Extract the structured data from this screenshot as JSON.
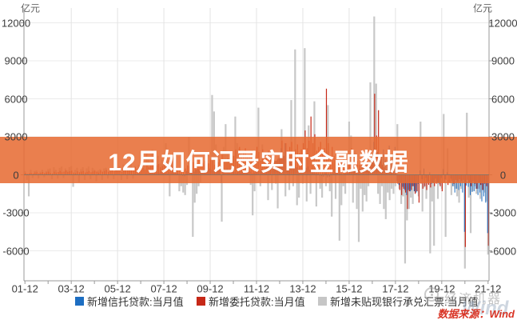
{
  "title_overlay": {
    "text": "12月如何记录实时金融数据",
    "band_color": "rgba(231,108,52,0.87)"
  },
  "axis": {
    "unit_left": "亿元",
    "unit_right": "亿元",
    "y_tick_values": [
      12000,
      9000,
      6000,
      3000,
      0,
      -3000,
      -6000
    ],
    "x_tick_labels": [
      "01-12",
      "03-12",
      "05-12",
      "07-12",
      "09-12",
      "11-12",
      "13-12",
      "15-12",
      "17-12",
      "19-12",
      "21-12"
    ]
  },
  "legend": {
    "items": [
      {
        "label": "新增信托贷款:当月值",
        "color": "#1d6ec2"
      },
      {
        "label": "新增委托贷款:当月值",
        "color": "#c62817"
      },
      {
        "label": "新增未贴现银行承兑汇票:当月值",
        "color": "#c6c6c6"
      }
    ]
  },
  "watermark": {
    "brand": "经济机器",
    "wind": "Wind",
    "source": "数据来源：Wind"
  },
  "chart_data": {
    "type": "bar",
    "unit": "亿元",
    "frequency": "monthly",
    "x_start": "2001-12",
    "x_end": "2021-12",
    "x_tick_labels": [
      "01-12",
      "03-12",
      "05-12",
      "07-12",
      "09-12",
      "11-12",
      "13-12",
      "15-12",
      "17-12",
      "19-12",
      "21-12"
    ],
    "ylim": [
      -8250,
      13200
    ],
    "y_ticks": [
      12000,
      9000,
      6000,
      3000,
      0,
      -3000,
      -6000
    ],
    "grid": true,
    "legend_position": "bottom",
    "series": [
      {
        "name": "新增未贴现银行承兑汇票:当月值",
        "color": "#c8c8c8",
        "values": [
          300,
          -400,
          -1700,
          400,
          -250,
          300,
          350,
          -300,
          250,
          400,
          -200,
          300,
          450,
          500,
          -350,
          600,
          400,
          -300,
          550,
          650,
          -250,
          500,
          350,
          600,
          700,
          -950,
          400,
          550,
          -600,
          450,
          600,
          -400,
          500,
          650,
          -350,
          550,
          400,
          -500,
          350,
          450,
          -400,
          500,
          550,
          -300,
          400,
          500,
          -350,
          450,
          600,
          700,
          -400,
          800,
          600,
          -350,
          750,
          850,
          -300,
          700,
          500,
          800,
          900,
          1500,
          800,
          1800,
          1200,
          900,
          2000,
          1100,
          700,
          1500,
          900,
          1200,
          1000,
          2500,
          1200,
          -1700,
          900,
          1400,
          1100,
          600,
          -1300,
          -900,
          -1400,
          -1600,
          -800,
          3000,
          1500,
          -4900,
          -2200,
          -1500,
          -900,
          -600,
          400,
          800,
          600,
          900,
          1200,
          6300,
          5000,
          2400,
          1700,
          1200,
          -3700,
          2200,
          4000,
          1800,
          1200,
          900,
          1500,
          4600,
          2500,
          2100,
          1700,
          1300,
          1000,
          1500,
          1100,
          -800,
          -3200,
          -1300,
          900,
          5300,
          -900,
          2400,
          1300,
          1700,
          -2000,
          800,
          -1200,
          1300,
          -700,
          -2650,
          1100,
          3600,
          1800,
          -1700,
          900,
          -1200,
          5900,
          -900,
          9900,
          -2400,
          -1800,
          1100,
          -700,
          10000,
          -2100,
          3900,
          -1500,
          1200,
          5800,
          -2500,
          900,
          -1100,
          -1800,
          800,
          -900,
          5500,
          -1300,
          -3300,
          900,
          -1900,
          1100,
          -5200,
          -2400,
          -900,
          -1500,
          700,
          4200,
          3100,
          -2200,
          1900,
          -2700,
          -5300,
          -1100,
          -2900,
          -1600,
          -2100,
          -900,
          7300,
          1700,
          12500,
          7200,
          -1500,
          -2300,
          -900,
          -2700,
          -3500,
          -1400,
          -2000,
          -1100,
          -1500,
          -900,
          4000,
          -1100,
          -2300,
          -1700,
          -7000,
          -3600,
          -2700,
          -1800,
          -2300,
          -1300,
          -900,
          -1700,
          4200,
          -2900,
          -1000,
          -1900,
          -700,
          -6200,
          -2100,
          -5600,
          -600,
          -1900,
          -800,
          -1100,
          4800,
          -4900,
          2100,
          -600,
          -1600,
          -900,
          -1100,
          -1700,
          -2200,
          -1100,
          -600,
          -7400,
          4900,
          -1800,
          -4600,
          -1300,
          -900,
          -1500,
          -1100,
          -1900,
          -600,
          -1400,
          -2100,
          -6300
        ]
      },
      {
        "name": "新增委托贷款:当月值",
        "color": "#c62817",
        "values": [
          150,
          80,
          120,
          150,
          100,
          180,
          200,
          120,
          160,
          220,
          140,
          190,
          250,
          150,
          100,
          250,
          180,
          220,
          300,
          200,
          250,
          350,
          220,
          280,
          320,
          180,
          130,
          280,
          200,
          250,
          300,
          180,
          230,
          300,
          200,
          260,
          310,
          250,
          180,
          350,
          250,
          300,
          380,
          250,
          300,
          400,
          280,
          350,
          420,
          350,
          250,
          500,
          380,
          450,
          550,
          400,
          480,
          600,
          450,
          520,
          580,
          550,
          400,
          750,
          600,
          700,
          900,
          650,
          750,
          850,
          600,
          700,
          800,
          600,
          450,
          800,
          650,
          750,
          700,
          500,
          550,
          650,
          400,
          500,
          750,
          700,
          500,
          1000,
          800,
          900,
          1300,
          850,
          950,
          1100,
          800,
          900,
          1200,
          1100,
          800,
          1400,
          1000,
          1200,
          1600,
          1000,
          1100,
          1300,
          900,
          1100,
          1500,
          2000,
          1300,
          2200,
          1500,
          1800,
          2100,
          1400,
          1600,
          1900,
          1300,
          1600,
          2200,
          1800,
          1100,
          2000,
          1300,
          1500,
          1900,
          1200,
          1400,
          1700,
          1100,
          1300,
          1600,
          2700,
          1500,
          2500,
          1900,
          2200,
          2600,
          1800,
          2000,
          2400,
          1700,
          2000,
          2500,
          3500,
          2100,
          2700,
          4600,
          2500,
          3200,
          1900,
          2200,
          2600,
          1800,
          2100,
          6800,
          2500,
          1200,
          2200,
          1500,
          1100,
          1800,
          900,
          1100,
          1400,
          800,
          1000,
          1600,
          2100,
          900,
          1600,
          1100,
          800,
          1300,
          700,
          900,
          1200,
          600,
          800,
          1100,
          6400,
          3100,
          5100,
          1200,
          800,
          600,
          400,
          300,
          500,
          200,
          300,
          600,
          -700,
          -1200,
          -1600,
          -1100,
          -1400,
          -2700,
          -1300,
          -1200,
          -900,
          -1500,
          -1300,
          -2200,
          -700,
          -1100,
          -900,
          -1200,
          -800,
          -1000,
          -600,
          -900,
          -700,
          -600,
          -900,
          -1300,
          -600,
          -400,
          -800,
          -600,
          -500,
          -700,
          -400,
          -550,
          -350,
          -500,
          -400,
          -5700,
          -400,
          -600,
          -900,
          -500,
          -700,
          -1100,
          -600,
          -800,
          -1200,
          -700,
          -900,
          -5600
        ]
      },
      {
        "name": "新增信托贷款:当月值",
        "color": "#1d6ec2",
        "values": [
          0,
          0,
          0,
          0,
          0,
          0,
          0,
          0,
          0,
          0,
          0,
          0,
          0,
          0,
          0,
          0,
          0,
          0,
          0,
          0,
          0,
          0,
          0,
          0,
          0,
          0,
          0,
          0,
          0,
          0,
          0,
          0,
          0,
          0,
          0,
          0,
          0,
          0,
          0,
          0,
          0,
          0,
          0,
          0,
          0,
          0,
          0,
          0,
          0,
          30,
          20,
          40,
          30,
          50,
          60,
          40,
          50,
          70,
          60,
          80,
          90,
          80,
          60,
          120,
          90,
          150,
          180,
          120,
          160,
          200,
          170,
          220,
          260,
          150,
          100,
          200,
          150,
          250,
          180,
          120,
          90,
          60,
          -80,
          -120,
          300,
          200,
          150,
          300,
          250,
          400,
          450,
          300,
          350,
          400,
          300,
          350,
          500,
          400,
          300,
          600,
          450,
          550,
          -650,
          350,
          400,
          500,
          250,
          300,
          450,
          200,
          150,
          250,
          180,
          220,
          280,
          150,
          200,
          250,
          120,
          180,
          250,
          250,
          300,
          450,
          400,
          550,
          700,
          600,
          750,
          900,
          1100,
          1200,
          1400,
          2100,
          1500,
          2500,
          1800,
          1400,
          1200,
          900,
          700,
          600,
          450,
          400,
          300,
          750,
          550,
          650,
          400,
          300,
          250,
          150,
          100,
          -50,
          -100,
          -150,
          200,
          -200,
          -150,
          100,
          150,
          200,
          250,
          150,
          100,
          50,
          100,
          150,
          250,
          550,
          350,
          450,
          300,
          400,
          500,
          600,
          700,
          650,
          700,
          850,
          950,
          2600,
          1100,
          1800,
          1400,
          1600,
          2000,
          1200,
          1100,
          2300,
          1000,
          1400,
          2200,
          -500,
          -800,
          -600,
          -950,
          -1200,
          -1600,
          -1200,
          -1300,
          -900,
          -1300,
          -1400,
          -700,
          350,
          -350,
          500,
          -250,
          -550,
          200,
          -700,
          -650,
          -300,
          -600,
          -700,
          -250,
          450,
          -350,
          200,
          50,
          -300,
          -900,
          -1400,
          -1100,
          -1200,
          -900,
          -1400,
          -4500,
          -850,
          -950,
          -1600,
          -1350,
          -1300,
          -1100,
          -1600,
          -1400,
          -2100,
          -1700,
          -2200,
          -4600
        ]
      }
    ]
  }
}
